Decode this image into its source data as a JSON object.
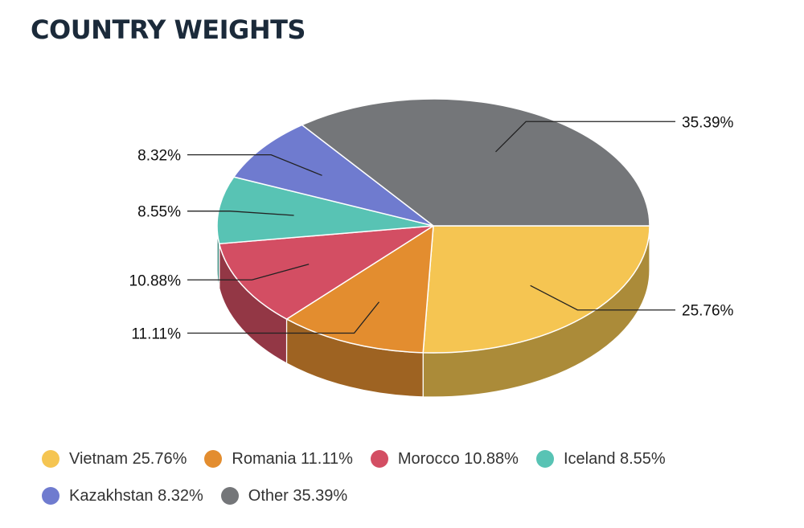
{
  "title": "COUNTRY WEIGHTS",
  "chart_data": {
    "type": "pie",
    "style": "3d",
    "title": "COUNTRY WEIGHTS",
    "unit": "%",
    "legend_position": "bottom",
    "slices": [
      {
        "label": "Vietnam",
        "value": 25.76,
        "display": "25.76%",
        "legend": "Vietnam 25.76%",
        "color": "#f5c552",
        "side_color": "#ab8b39"
      },
      {
        "label": "Romania",
        "value": 11.11,
        "display": "11.11%",
        "legend": "Romania 11.11%",
        "color": "#e38d2f",
        "side_color": "#9e6322"
      },
      {
        "label": "Morocco",
        "value": 10.88,
        "display": "10.88%",
        "legend": "Morocco 10.88%",
        "color": "#d34e63",
        "side_color": "#933745"
      },
      {
        "label": "Iceland",
        "value": 8.55,
        "display": "8.55%",
        "legend": "Iceland 8.55%",
        "color": "#58c3b4",
        "side_color": "#3e897e"
      },
      {
        "label": "Kazakhstan",
        "value": 8.32,
        "display": "8.32%",
        "legend": "Kazakhstan 8.32%",
        "color": "#6f7bcf",
        "side_color": "#4e5691"
      },
      {
        "label": "Other",
        "value": 35.39,
        "display": "35.39%",
        "legend": "Other 35.39%",
        "color": "#747679",
        "side_color": "#525355"
      }
    ]
  }
}
